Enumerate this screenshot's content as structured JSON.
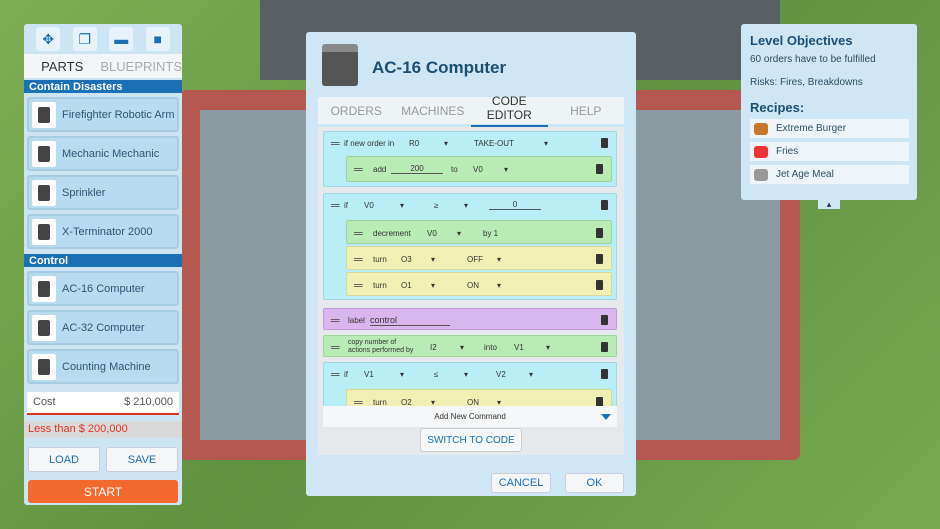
{
  "left": {
    "icons": [
      "move-icon",
      "copy-icon",
      "blueprint-icon",
      "camera-icon"
    ],
    "tabs": [
      "PARTS",
      "BLUEPRINTS"
    ],
    "sections": [
      {
        "title": "Contain Disasters",
        "items": [
          "Firefighter Robotic Arm",
          "Mechanic Mechanic",
          "Sprinkler",
          "X-Terminator 2000"
        ]
      },
      {
        "title": "Control",
        "items": [
          "AC-16 Computer",
          "AC-32 Computer",
          "Counting Machine"
        ]
      }
    ],
    "cost_label": "Cost",
    "cost_value": "$ 210,000",
    "warning": "Less than $ 200,000",
    "load": "LOAD",
    "save": "SAVE",
    "start": "START"
  },
  "dialog": {
    "title": "AC-16 Computer",
    "tabs": [
      "ORDERS",
      "MACHINES",
      "CODE EDITOR",
      "HELP"
    ],
    "active_tab": "CODE EDITOR",
    "b1": {
      "a": "if new order in",
      "b": "R0",
      "c": "TAKE-OUT",
      "n": {
        "a": "add",
        "v": "200",
        "b": "to",
        "c": "V0"
      }
    },
    "b2": {
      "a": "if",
      "b": "V0",
      "op": "≥",
      "v": "0",
      "n1": {
        "a": "decrement",
        "b": "V0",
        "c": "by 1"
      },
      "n2": {
        "a": "turn",
        "b": "O3",
        "c": "OFF"
      },
      "n3": {
        "a": "turn",
        "b": "O1",
        "c": "ON"
      }
    },
    "b3": {
      "a": "label",
      "v": "control"
    },
    "b4": {
      "a": "copy number of actions performed by",
      "b": "I2",
      "c": "into",
      "d": "V1"
    },
    "b5": {
      "a": "if",
      "b": "V1",
      "op": "≤",
      "c": "V2",
      "n": {
        "a": "turn",
        "b": "O2",
        "c": "ON"
      }
    },
    "add_command": "Add New Command",
    "switch": "SWITCH TO CODE",
    "cancel": "CANCEL",
    "ok": "OK"
  },
  "right": {
    "title": "Level Objectives",
    "line1": "60 orders have to be fulfilled",
    "line2": "Risks: Fires, Breakdowns",
    "recipes_title": "Recipes:",
    "recipes": [
      "Extreme Burger",
      "Fries",
      "Jet Age Meal"
    ]
  },
  "colors": {
    "accent": "#1a6fb5",
    "start": "#f26a2e",
    "warning": "#dd3322"
  }
}
